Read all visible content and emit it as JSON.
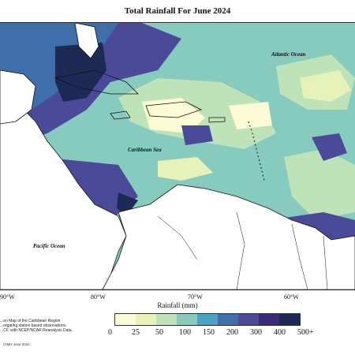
{
  "title": "Total Rainfall For June 2024",
  "labels": {
    "atlantic": "Atlantic Ocean",
    "caribbean": "Caribbean Sea",
    "pacific": "Pacific Ocean"
  },
  "x_axis": {
    "ticks": [
      "90°W",
      "80°W",
      "70°W",
      "60°W"
    ],
    "title": "Rainfall (mm)"
  },
  "legend": {
    "colors": [
      "#fbfbd5",
      "#e7f2b8",
      "#bfe3b9",
      "#86cbbd",
      "#4aa3c6",
      "#3e6fab",
      "#4a4a99",
      "#3c2a7a",
      "#1c2a55"
    ],
    "labels": [
      "0",
      "25",
      "50",
      "100",
      "150",
      "200",
      "300",
      "400",
      "500+"
    ]
  },
  "note": {
    "line1": "...on Map of the Caribbean Region",
    "line2": "...regating station based observations,",
    "line3": "...CF, with NCEP/NCAR Reanalysis Data."
  },
  "credit": "CIMH June 2024",
  "colors": {
    "land": "#ffffff",
    "coast": "#111111"
  }
}
